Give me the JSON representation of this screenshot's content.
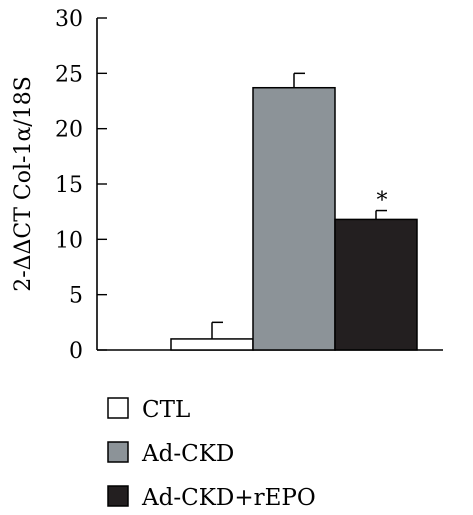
{
  "chart_data": {
    "type": "bar",
    "ylabel": "2-ΔΔCT Col-1α/18S",
    "ylim": [
      0,
      30
    ],
    "yticks": [
      0,
      5,
      10,
      15,
      20,
      25,
      30
    ],
    "grid": false,
    "legend_position": "bottom",
    "categories": [
      "CTL",
      "Ad-CKD",
      "Ad-CKD+rEPO"
    ],
    "values": [
      1.0,
      23.7,
      11.8
    ],
    "error_bars": [
      1.5,
      1.3,
      0.8
    ],
    "colors": [
      "#ffffff",
      "#8c9398",
      "#231f20"
    ],
    "annotations": [
      {
        "category": "Ad-CKD+rEPO",
        "text": "*"
      }
    ],
    "legend": [
      {
        "label": "CTL",
        "color": "#ffffff"
      },
      {
        "label": "Ad-CKD",
        "color": "#8c9398"
      },
      {
        "label": "Ad-CKD+rEPO",
        "color": "#231f20"
      }
    ]
  }
}
